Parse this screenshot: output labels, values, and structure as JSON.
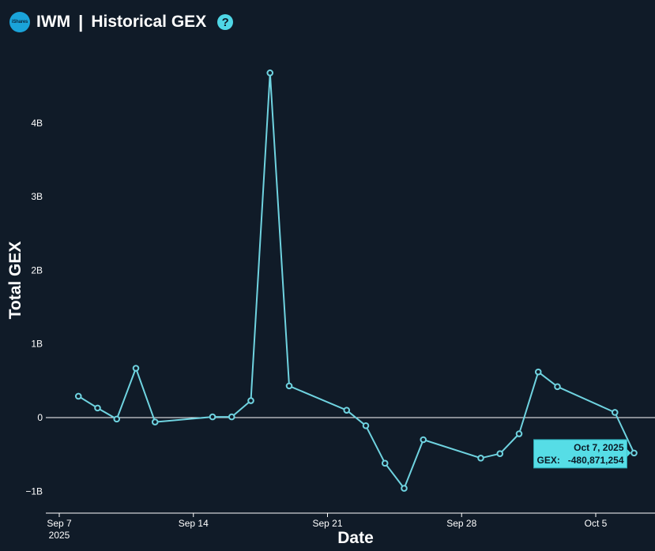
{
  "header": {
    "logo_text": "iShares",
    "ticker": "IWM",
    "separator": "|",
    "title": "Historical GEX",
    "help": "?"
  },
  "colors": {
    "background": "#101b28",
    "line": "#6fd3e0",
    "tooltip_bg": "#56dde6"
  },
  "chart_data": {
    "type": "line",
    "xlabel": "Date",
    "ylabel": "Total GEX",
    "grid": false,
    "y_ticks": [
      {
        "value": 4000000000,
        "label": "4B"
      },
      {
        "value": 3000000000,
        "label": "3B"
      },
      {
        "value": 2000000000,
        "label": "2B"
      },
      {
        "value": 1000000000,
        "label": "1B"
      },
      {
        "value": 0,
        "label": "0"
      },
      {
        "value": -1000000000,
        "label": "−1B"
      }
    ],
    "x_ticks": [
      {
        "date": "2025-09-07",
        "label": "Sep 7",
        "sublabel": "2025"
      },
      {
        "date": "2025-09-14",
        "label": "Sep 14",
        "sublabel": ""
      },
      {
        "date": "2025-09-21",
        "label": "Sep 21",
        "sublabel": ""
      },
      {
        "date": "2025-09-28",
        "label": "Sep 28",
        "sublabel": ""
      },
      {
        "date": "2025-10-05",
        "label": "Oct 5",
        "sublabel": ""
      }
    ],
    "x": [
      "2025-09-08",
      "2025-09-09",
      "2025-09-10",
      "2025-09-11",
      "2025-09-12",
      "2025-09-15",
      "2025-09-16",
      "2025-09-17",
      "2025-09-18",
      "2025-09-19",
      "2025-09-22",
      "2025-09-23",
      "2025-09-24",
      "2025-09-25",
      "2025-09-26",
      "2025-09-29",
      "2025-09-30",
      "2025-10-01",
      "2025-10-02",
      "2025-10-03",
      "2025-10-06",
      "2025-10-07"
    ],
    "values": [
      290000000,
      130000000,
      -20000000,
      670000000,
      -60000000,
      10000000,
      10000000,
      230000000,
      4680000000,
      430000000,
      100000000,
      -110000000,
      -620000000,
      -960000000,
      -300000000,
      -550000000,
      -490000000,
      -220000000,
      620000000,
      420000000,
      70000000,
      -480871254
    ],
    "tooltip": {
      "date": "Oct 7, 2025",
      "label": "GEX:",
      "value": "-480,871,254"
    }
  }
}
